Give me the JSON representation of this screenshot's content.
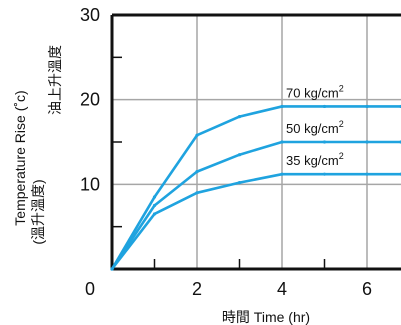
{
  "chart_data": {
    "type": "line",
    "title": "",
    "xlabel": "時間 Time (hr)",
    "ylabel": "Temperature Rise (˚c)",
    "ylabel_cn": "油上升溫度",
    "ylabel_cn_sub": "(溫升溫度)",
    "xlim": [
      0,
      6.8
    ],
    "ylim": [
      0,
      30
    ],
    "x_ticks": [
      0,
      2,
      4,
      6
    ],
    "y_ticks": [
      10,
      20,
      30
    ],
    "grid": true,
    "colors": {
      "series": "#1fa3df",
      "axis": "#111111",
      "grid": "#a6a6a6"
    },
    "series": [
      {
        "name": "70 kg/cm",
        "sup": "2",
        "x": [
          0,
          1,
          2,
          3,
          4,
          5,
          6,
          6.8
        ],
        "y": [
          0,
          8.5,
          15.8,
          18.0,
          19.2,
          19.2,
          19.2,
          19.2
        ]
      },
      {
        "name": "50 kg/cm",
        "sup": "2",
        "x": [
          0,
          1,
          2,
          3,
          4,
          5,
          6,
          6.8
        ],
        "y": [
          0,
          7.5,
          11.5,
          13.5,
          15.0,
          15.0,
          15.0,
          15.0
        ]
      },
      {
        "name": "35 kg/cm",
        "sup": "2",
        "x": [
          0,
          1,
          2,
          3,
          4,
          5,
          6,
          6.8
        ],
        "y": [
          0,
          6.5,
          9.0,
          10.2,
          11.2,
          11.2,
          11.2,
          11.2
        ]
      }
    ]
  }
}
